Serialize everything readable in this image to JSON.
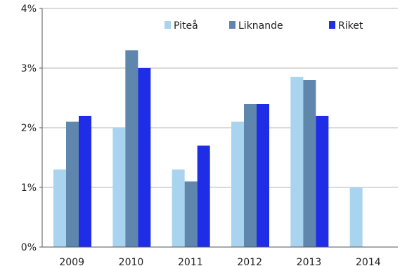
{
  "chart_data": {
    "type": "bar",
    "title": "",
    "xlabel": "",
    "ylabel": "",
    "categories": [
      "2009",
      "2010",
      "2011",
      "2012",
      "2013",
      "2014"
    ],
    "series": [
      {
        "name": "Piteå",
        "values": [
          1.3,
          2.0,
          1.3,
          2.1,
          2.85,
          1.0
        ],
        "color": "#a9d4ef"
      },
      {
        "name": "Liknande",
        "values": [
          2.1,
          3.3,
          1.1,
          2.4,
          2.8,
          null
        ],
        "color": "#5f86ad"
      },
      {
        "name": "Riket",
        "values": [
          2.2,
          3.0,
          1.7,
          2.4,
          2.2,
          null
        ],
        "color": "#1f2ee6"
      }
    ],
    "ylim": [
      0,
      4
    ],
    "yticks": [
      "0%",
      "1%",
      "2%",
      "3%",
      "4%"
    ],
    "grid": true,
    "legend_position": "top-right"
  }
}
